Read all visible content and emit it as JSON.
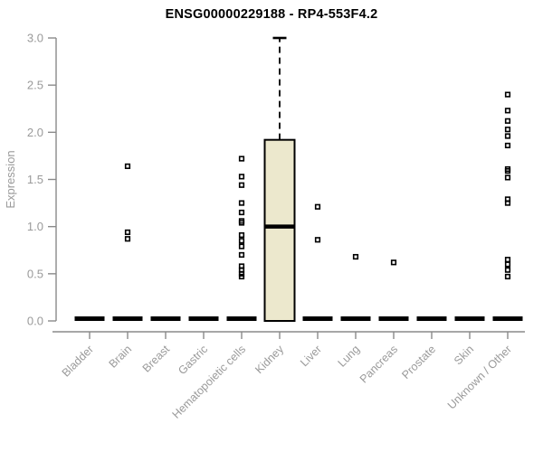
{
  "chart_data": {
    "type": "boxplot",
    "title": "ENSG00000229188 - RP4-553F4.2",
    "xlabel": "",
    "ylabel": "Expression",
    "ylim": [
      0.0,
      3.0
    ],
    "yticks": [
      "0.0",
      "0.5",
      "1.0",
      "1.5",
      "2.0",
      "2.5",
      "3.0"
    ],
    "grid": false,
    "legend": "none",
    "categories": [
      "Bladder",
      "Brain",
      "Breast",
      "Gastric",
      "Hematopoietic cells",
      "Kidney",
      "Liver",
      "Lung",
      "Pancreas",
      "Prostate",
      "Skin",
      "Unknown / Other"
    ],
    "boxes": [
      {
        "category": "Bladder",
        "q1": 0.0,
        "median": 0.0,
        "q3": 0.0,
        "whisker_low": 0.0,
        "whisker_high": 0.0
      },
      {
        "category": "Brain",
        "q1": 0.0,
        "median": 0.0,
        "q3": 0.0,
        "whisker_low": 0.0,
        "whisker_high": 0.0
      },
      {
        "category": "Breast",
        "q1": 0.0,
        "median": 0.0,
        "q3": 0.0,
        "whisker_low": 0.0,
        "whisker_high": 0.0
      },
      {
        "category": "Gastric",
        "q1": 0.0,
        "median": 0.0,
        "q3": 0.0,
        "whisker_low": 0.0,
        "whisker_high": 0.0
      },
      {
        "category": "Hematopoietic cells",
        "q1": 0.0,
        "median": 0.0,
        "q3": 0.0,
        "whisker_low": 0.0,
        "whisker_high": 0.0
      },
      {
        "category": "Kidney",
        "q1": 0.0,
        "median": 1.0,
        "q3": 1.92,
        "whisker_low": 0.0,
        "whisker_high": 3.0
      },
      {
        "category": "Liver",
        "q1": 0.0,
        "median": 0.0,
        "q3": 0.0,
        "whisker_low": 0.0,
        "whisker_high": 0.0
      },
      {
        "category": "Lung",
        "q1": 0.0,
        "median": 0.0,
        "q3": 0.0,
        "whisker_low": 0.0,
        "whisker_high": 0.0
      },
      {
        "category": "Pancreas",
        "q1": 0.0,
        "median": 0.0,
        "q3": 0.0,
        "whisker_low": 0.0,
        "whisker_high": 0.0
      },
      {
        "category": "Prostate",
        "q1": 0.0,
        "median": 0.0,
        "q3": 0.0,
        "whisker_low": 0.0,
        "whisker_high": 0.0
      },
      {
        "category": "Skin",
        "q1": 0.0,
        "median": 0.0,
        "q3": 0.0,
        "whisker_low": 0.0,
        "whisker_high": 0.0
      },
      {
        "category": "Unknown / Other",
        "q1": 0.0,
        "median": 0.0,
        "q3": 0.0,
        "whisker_low": 0.0,
        "whisker_high": 0.0
      }
    ],
    "outliers": [
      [],
      [
        1.64,
        0.94,
        0.87
      ],
      [],
      [],
      [
        1.72,
        1.53,
        1.44,
        1.25,
        1.15,
        1.06,
        1.04,
        0.91,
        0.85,
        0.79,
        0.7,
        0.58,
        0.54,
        0.5,
        0.47
      ],
      [],
      [
        1.21,
        0.86
      ],
      [
        0.68
      ],
      [
        0.62
      ],
      [],
      [],
      [
        2.4,
        2.23,
        2.12,
        2.03,
        1.96,
        1.86,
        1.61,
        1.59,
        1.52,
        1.29,
        1.25,
        0.65,
        0.6,
        0.54,
        0.47
      ]
    ],
    "colors": {
      "title": "#000000",
      "axis": "#8a8a8a",
      "tick_label": "#9a9a9a",
      "box_fill": "#ece8cd",
      "box_stroke": "#000000",
      "median": "#000000",
      "whisker": "#000000",
      "point": "#000000",
      "zero_bar": "#000000",
      "background": "#ffffff"
    }
  }
}
